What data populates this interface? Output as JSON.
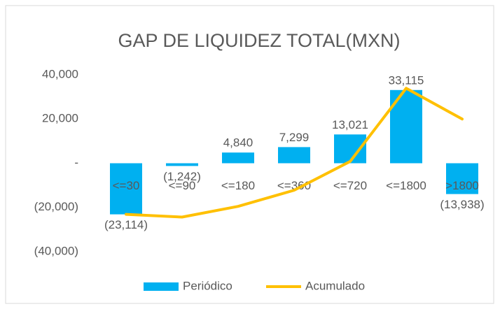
{
  "chart_data": {
    "type": "bar",
    "title": "GAP DE LIQUIDEZ TOTAL(MXN)",
    "categories": [
      "<=30",
      "<=90",
      "<=180",
      "<=360",
      "<=720",
      "<=1800",
      ">1800"
    ],
    "series": [
      {
        "name": "Periódico",
        "type": "bar",
        "color": "#00B0F0",
        "values": [
          -23114,
          -1242,
          4840,
          7299,
          13021,
          33115,
          -13938
        ],
        "value_labels": [
          "(23,114)",
          "(1,242)",
          "4,840",
          "7,299",
          "13,021",
          "33,115",
          "(13,938)"
        ]
      },
      {
        "name": "Acumulado",
        "type": "line",
        "color": "#FFC000",
        "values": [
          -23114,
          -24356,
          -19516,
          -12217,
          804,
          33919,
          19981
        ]
      }
    ],
    "ylim": [
      -40000,
      40000
    ],
    "yticks": [
      {
        "value": 40000,
        "label": "40,000"
      },
      {
        "value": 20000,
        "label": "20,000"
      },
      {
        "value": 0,
        "label": "-"
      },
      {
        "value": -20000,
        "label": "(20,000)"
      },
      {
        "value": -40000,
        "label": "(40,000)"
      }
    ],
    "grid": false,
    "legend": "bottom"
  }
}
